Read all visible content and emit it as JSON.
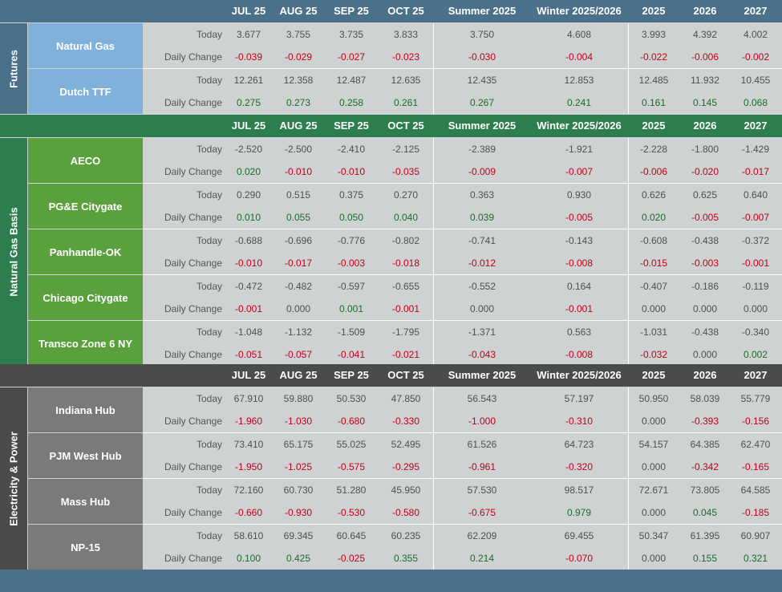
{
  "colors": {
    "futures_header": "#4a7189",
    "futures_name_cell": "#7fb1db",
    "gas_header": "#2e7d4f",
    "gas_name_cell": "#5aa13d",
    "power_header": "#4b4b4b",
    "power_name_cell": "#7a7a7a",
    "negative": "#c00018",
    "positive": "#1b6b2c",
    "background": "#cfd2d2"
  },
  "columns": [
    "JUL 25",
    "AUG 25",
    "SEP 25",
    "OCT 25",
    "Summer 2025",
    "Winter 2025/2026",
    "2025",
    "2026",
    "2027"
  ],
  "row_labels": {
    "today": "Today",
    "daily_change": "Daily Change"
  },
  "sections": [
    {
      "id": "futures",
      "title": "Futures",
      "items": [
        {
          "name": "Natural Gas",
          "today": [
            "3.677",
            "3.755",
            "3.735",
            "3.833",
            "3.750",
            "4.608",
            "3.993",
            "4.392",
            "4.002"
          ],
          "change": [
            "-0.039",
            "-0.029",
            "-0.027",
            "-0.023",
            "-0.030",
            "-0.004",
            "-0.022",
            "-0.006",
            "-0.002"
          ]
        },
        {
          "name": "Dutch TTF",
          "today": [
            "12.261",
            "12.358",
            "12.487",
            "12.635",
            "12.435",
            "12.853",
            "12.485",
            "11.932",
            "10.455"
          ],
          "change": [
            "0.275",
            "0.273",
            "0.258",
            "0.261",
            "0.267",
            "0.241",
            "0.161",
            "0.145",
            "0.068"
          ]
        }
      ]
    },
    {
      "id": "gas",
      "title": "Natural Gas Basis",
      "items": [
        {
          "name": "AECO",
          "today": [
            "-2.520",
            "-2.500",
            "-2.410",
            "-2.125",
            "-2.389",
            "-1.921",
            "-2.228",
            "-1.800",
            "-1.429"
          ],
          "change": [
            "0.020",
            "-0.010",
            "-0.010",
            "-0.035",
            "-0.009",
            "-0.007",
            "-0.006",
            "-0.020",
            "-0.017"
          ]
        },
        {
          "name": "PG&E Citygate",
          "today": [
            "0.290",
            "0.515",
            "0.375",
            "0.270",
            "0.363",
            "0.930",
            "0.626",
            "0.625",
            "0.640"
          ],
          "change": [
            "0.010",
            "0.055",
            "0.050",
            "0.040",
            "0.039",
            "-0.005",
            "0.020",
            "-0.005",
            "-0.007"
          ]
        },
        {
          "name": "Panhandle-OK",
          "today": [
            "-0.688",
            "-0.696",
            "-0.776",
            "-0.802",
            "-0.741",
            "-0.143",
            "-0.608",
            "-0.438",
            "-0.372"
          ],
          "change": [
            "-0.010",
            "-0.017",
            "-0.003",
            "-0.018",
            "-0.012",
            "-0.008",
            "-0.015",
            "-0.003",
            "-0.001"
          ]
        },
        {
          "name": "Chicago Citygate",
          "today": [
            "-0.472",
            "-0.482",
            "-0.597",
            "-0.655",
            "-0.552",
            "0.164",
            "-0.407",
            "-0.186",
            "-0.119"
          ],
          "change": [
            "-0.001",
            "0.000",
            "0.001",
            "-0.001",
            "0.000",
            "-0.001",
            "0.000",
            "0.000",
            "0.000"
          ]
        },
        {
          "name": "Transco Zone 6 NY",
          "today": [
            "-1.048",
            "-1.132",
            "-1.509",
            "-1.795",
            "-1.371",
            "0.563",
            "-1.031",
            "-0.438",
            "-0.340"
          ],
          "change": [
            "-0.051",
            "-0.057",
            "-0.041",
            "-0.021",
            "-0.043",
            "-0.008",
            "-0.032",
            "0.000",
            "0.002"
          ]
        }
      ]
    },
    {
      "id": "power",
      "title": "Electricity & Power",
      "items": [
        {
          "name": "Indiana Hub",
          "today": [
            "67.910",
            "59.880",
            "50.530",
            "47.850",
            "56.543",
            "57.197",
            "50.950",
            "58.039",
            "55.779"
          ],
          "change": [
            "-1.960",
            "-1.030",
            "-0.680",
            "-0.330",
            "-1.000",
            "-0.310",
            "0.000",
            "-0.393",
            "-0.156"
          ]
        },
        {
          "name": "PJM West Hub",
          "today": [
            "73.410",
            "65.175",
            "55.025",
            "52.495",
            "61.526",
            "64.723",
            "54.157",
            "64.385",
            "62.470"
          ],
          "change": [
            "-1.950",
            "-1.025",
            "-0.575",
            "-0.295",
            "-0.961",
            "-0.320",
            "0.000",
            "-0.342",
            "-0.165"
          ]
        },
        {
          "name": "Mass Hub",
          "today": [
            "72.160",
            "60.730",
            "51.280",
            "45.950",
            "57.530",
            "98.517",
            "72.671",
            "73.805",
            "64.585"
          ],
          "change": [
            "-0.660",
            "-0.930",
            "-0.530",
            "-0.580",
            "-0.675",
            "0.979",
            "0.000",
            "0.045",
            "-0.185"
          ]
        },
        {
          "name": "NP-15",
          "today": [
            "58.610",
            "69.345",
            "60.645",
            "60.235",
            "62.209",
            "69.455",
            "50.347",
            "61.395",
            "60.907"
          ],
          "change": [
            "0.100",
            "0.425",
            "-0.025",
            "0.355",
            "0.214",
            "-0.070",
            "0.000",
            "0.155",
            "0.321"
          ]
        }
      ]
    }
  ]
}
